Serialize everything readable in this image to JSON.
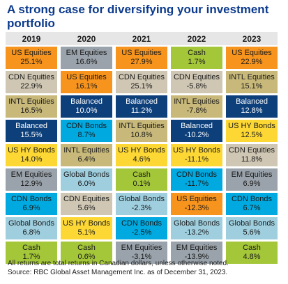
{
  "title_line1": "A strong case for diversifying your investment",
  "title_line2": "portfolio",
  "chart_data": {
    "type": "table",
    "columns": [
      "2019",
      "2020",
      "2021",
      "2022",
      "2023"
    ],
    "rows": [
      [
        {
          "name": "US Equities",
          "value": "25.1%"
        },
        {
          "name": "EM Equities",
          "value": "16.6%"
        },
        {
          "name": "US Equities",
          "value": "27.9%"
        },
        {
          "name": "Cash",
          "value": "1.7%"
        },
        {
          "name": "US Equities",
          "value": "22.9%"
        }
      ],
      [
        {
          "name": "CDN Equities",
          "value": "22.9%"
        },
        {
          "name": "US Equities",
          "value": "16.1%"
        },
        {
          "name": "CDN Equities",
          "value": "25.1%"
        },
        {
          "name": "CDN Equities",
          "value": "-5.8%"
        },
        {
          "name": "INTL Equities",
          "value": "15.1%"
        }
      ],
      [
        {
          "name": "INTL Equities",
          "value": "16.5%"
        },
        {
          "name": "Balanced",
          "value": "10.0%"
        },
        {
          "name": "Balanced",
          "value": "11.2%"
        },
        {
          "name": "INTL Equities",
          "value": "-7.8%"
        },
        {
          "name": "Balanced",
          "value": "12.8%"
        }
      ],
      [
        {
          "name": "Balanced",
          "value": "15.5%"
        },
        {
          "name": "CDN Bonds",
          "value": "8.7%"
        },
        {
          "name": "INTL Equities",
          "value": "10.8%"
        },
        {
          "name": "Balanced",
          "value": "-10.2%"
        },
        {
          "name": "US HY Bonds",
          "value": "12.5%"
        }
      ],
      [
        {
          "name": "US HY Bonds",
          "value": "14.0%"
        },
        {
          "name": "INTL Equities",
          "value": "6.4%"
        },
        {
          "name": "US HY Bonds",
          "value": "4.6%"
        },
        {
          "name": "US HY Bonds",
          "value": "-11.1%"
        },
        {
          "name": "CDN Equities",
          "value": "11.8%"
        }
      ],
      [
        {
          "name": "EM Equities",
          "value": "12.9%"
        },
        {
          "name": "Global Bonds",
          "value": "6.0%"
        },
        {
          "name": "Cash",
          "value": "0.1%"
        },
        {
          "name": "CDN Bonds",
          "value": "-11.7%"
        },
        {
          "name": "EM Equities",
          "value": "6.9%"
        }
      ],
      [
        {
          "name": "CDN Bonds",
          "value": "6.9%"
        },
        {
          "name": "CDN Equities",
          "value": "5.6%"
        },
        {
          "name": "Global Bonds",
          "value": "-2.3%"
        },
        {
          "name": "US Equities",
          "value": "-12.3%"
        },
        {
          "name": "CDN Bonds",
          "value": "6.7%"
        }
      ],
      [
        {
          "name": "Global Bonds",
          "value": "6.8%"
        },
        {
          "name": "US HY Bonds",
          "value": "5.1%"
        },
        {
          "name": "CDN Bonds",
          "value": "-2.5%"
        },
        {
          "name": "Global Bonds",
          "value": "-13.2%"
        },
        {
          "name": "Global Bonds",
          "value": "5.6%"
        }
      ],
      [
        {
          "name": "Cash",
          "value": "1.7%"
        },
        {
          "name": "Cash",
          "value": "0.6%"
        },
        {
          "name": "EM Equities",
          "value": "-3.1%"
        },
        {
          "name": "EM Equities",
          "value": "-13.9%"
        },
        {
          "name": "Cash",
          "value": "4.8%"
        }
      ]
    ],
    "asset_colors": {
      "US Equities": "#f7941d",
      "CDN Equities": "#cfc6b3",
      "INTL Equities": "#c8b97a",
      "Balanced": "#0d3f7a",
      "US HY Bonds": "#fdd835",
      "EM Equities": "#9aa3ab",
      "CDN Bonds": "#00a9e0",
      "Global Bonds": "#9fcfdf",
      "Cash": "#a4c639"
    },
    "light_text_assets": [
      "Balanced"
    ]
  },
  "footnote_line1": "All returns are total returns in Canadian dollars, unless otherwise noted.",
  "footnote_line2": "Source: RBC Global Asset Management Inc. as of December 31, 2023."
}
